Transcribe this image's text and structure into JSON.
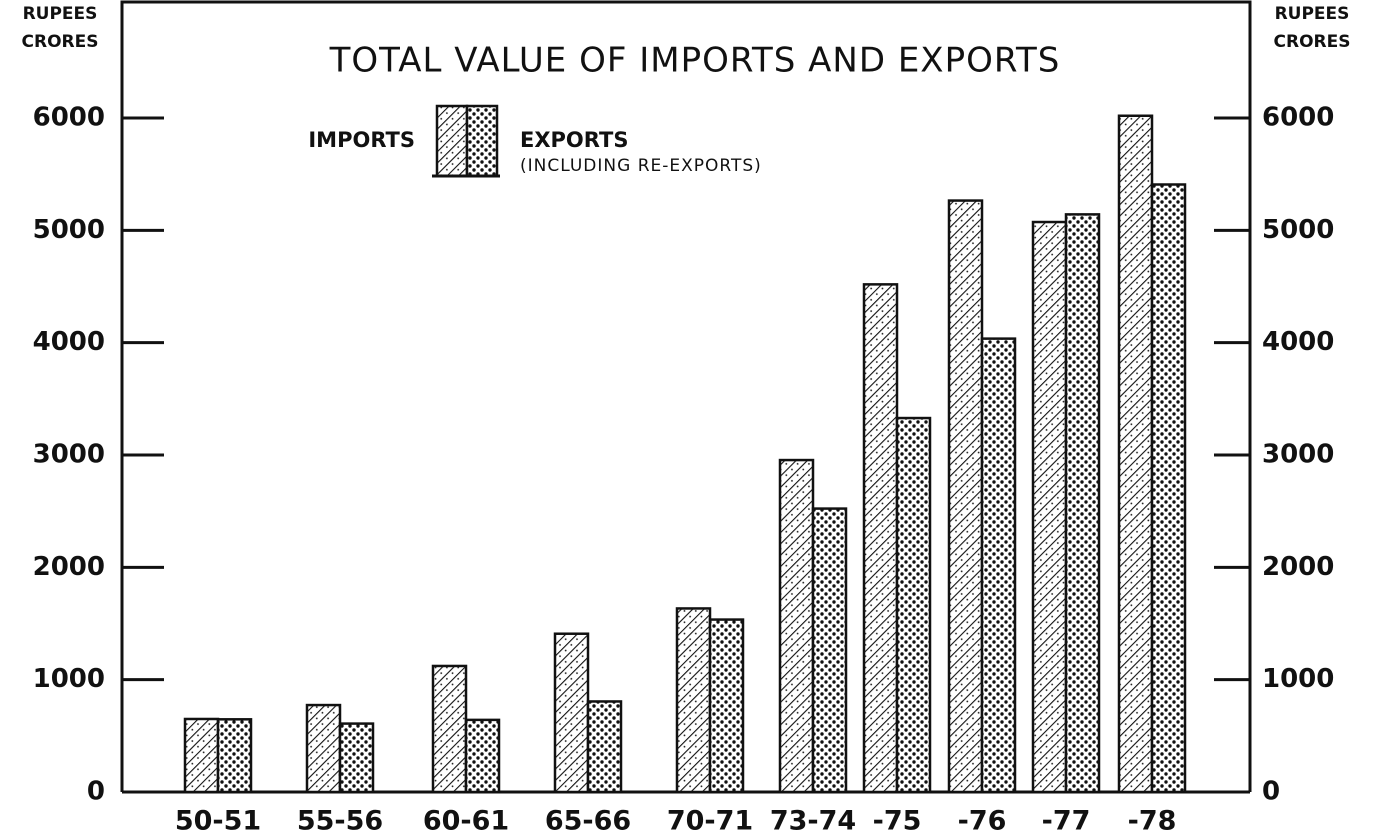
{
  "chart_data": {
    "type": "bar",
    "title": "TOTAL VALUE OF IMPORTS AND EXPORTS",
    "ylabel_lines": [
      "RUPEES",
      "CRORES"
    ],
    "y2label_lines": [
      "RUPEES",
      "CRORES"
    ],
    "legend_note": "(INCLUDING RE-EXPORTS)",
    "categories": [
      "50-51",
      "55-56",
      "60-61",
      "65-66",
      "70-71",
      "73-74",
      "-75",
      "-76",
      "-77",
      "-78"
    ],
    "series": [
      {
        "name": "IMPORTS",
        "color": "#111111",
        "pattern": "hatch",
        "values": [
          650,
          774,
          1122,
          1409,
          1634,
          2955,
          4519,
          5265,
          5074,
          6020
        ]
      },
      {
        "name": "EXPORTS",
        "color": "#111111",
        "pattern": "dots",
        "values": [
          647,
          609,
          642,
          806,
          1535,
          2523,
          3329,
          4036,
          5142,
          5408
        ]
      }
    ],
    "ylim": [
      0,
      6000
    ],
    "yticks": [
      0,
      1000,
      2000,
      3000,
      4000,
      5000,
      6000
    ],
    "y2lim": [
      0,
      6000
    ],
    "y2ticks": [
      0,
      1000,
      2000,
      3000,
      4000,
      5000,
      6000
    ]
  }
}
